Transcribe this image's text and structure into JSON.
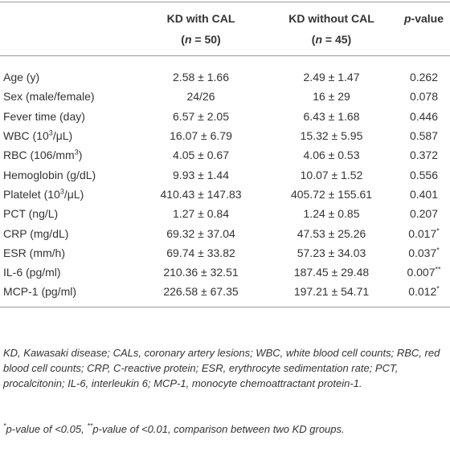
{
  "table": {
    "header": [
      {
        "title": "KD with CAL",
        "n_open": "(",
        "n_var": "n",
        "n_rest": " = 50)"
      },
      {
        "title": "KD without CAL",
        "n_open": "(",
        "n_var": "n",
        "n_rest": " = 45)"
      },
      {
        "italic": "p",
        "text": "-value"
      }
    ],
    "rows": [
      [
        "Age (y)",
        "2.58 ± 1.66",
        "2.49 ± 1.47",
        "0.262"
      ],
      [
        "Sex (male/female)",
        "24/26",
        "16 ± 29",
        "0.078"
      ],
      [
        "Fever time (day)",
        "6.57 ± 2.05",
        "6.43 ± 1.68",
        "0.446"
      ],
      [
        {
          "text": "WBC (10",
          "sup": "3",
          "after": "/μL)"
        },
        "16.07 ± 6.79",
        "15.32 ± 5.95",
        "0.587"
      ],
      [
        {
          "text": "RBC (106/mm",
          "sup": "3",
          "after": ")"
        },
        "4.05 ± 0.67",
        "4.06 ± 0.53",
        "0.372"
      ],
      [
        "Hemoglobin (g/dL)",
        "9.93 ± 1.44",
        "10.07 ± 1.52",
        "0.556"
      ],
      [
        {
          "text": "Platelet (10",
          "sup": "3",
          "after": "/μL)"
        },
        "410.43 ± 147.83",
        "405.72 ± 155.61",
        "0.401"
      ],
      [
        "PCT (ng/L)",
        "1.27 ± 0.84",
        "1.24 ± 0.85",
        "0.207"
      ],
      [
        "CRP (mg/dL)",
        "69.32 ± 37.04",
        "47.53 ± 25.26",
        {
          "text": "0.017",
          "sup": "*"
        }
      ],
      [
        "ESR (mm/h)",
        "69.74 ± 33.82",
        "57.23 ± 34.03",
        {
          "text": "0.037",
          "sup": "*"
        }
      ],
      [
        "IL-6 (pg/ml)",
        "210.36 ± 32.51",
        "187.45 ± 29.48",
        {
          "text": "0.007",
          "sup": "**"
        }
      ],
      [
        "MCP-1 (pg/ml)",
        "226.58 ± 67.35",
        "197.21 ± 54.71",
        {
          "text": "0.012",
          "sup": "*"
        }
      ]
    ]
  },
  "footnote": {
    "abbreviations": "KD, Kawasaki disease; CALs, coronary artery lesions; WBC, white blood cell counts; RBC, red blood cell counts; CRP, C-reactive protein; ESR, erythrocyte sedimentation rate; PCT, procalcitonin; IL-6, interleukin 6; MCP-1, monocyte chemoattractant protein-1.",
    "significance": {
      "mark1": "*",
      "text1": "p-value of <0.05, ",
      "mark2": "**",
      "text2": "p-value of <0.01, comparison between two KD groups."
    }
  }
}
